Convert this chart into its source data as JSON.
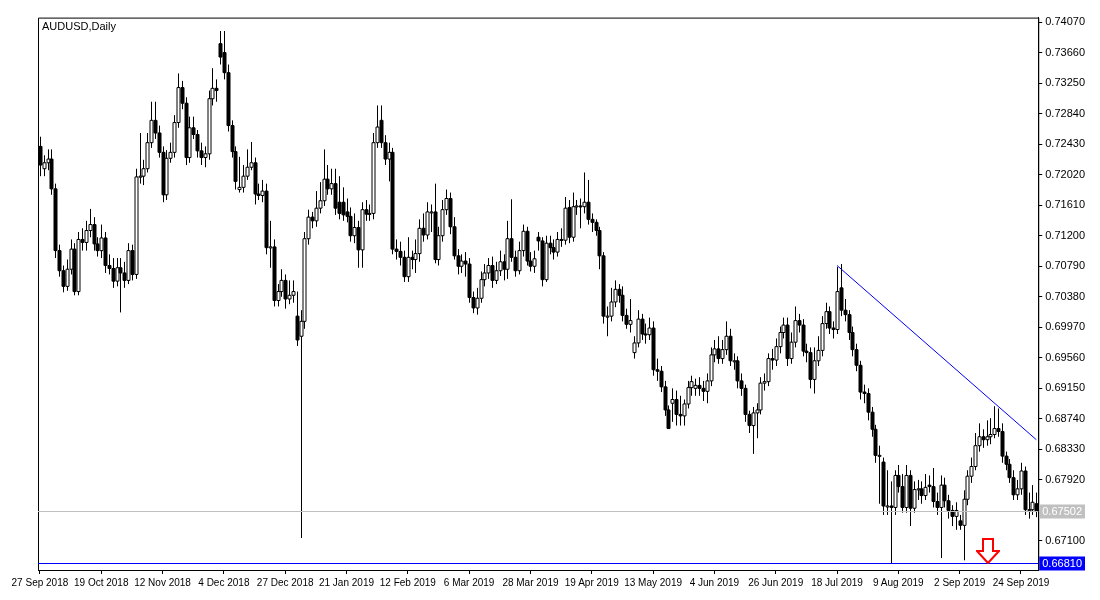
{
  "chart_data": {
    "type": "candlestick",
    "title": "AUDUSD,Daily",
    "categories": [
      "27 Sep 2018",
      null,
      null,
      null,
      null,
      null,
      null,
      null,
      null,
      null,
      null,
      null,
      null,
      null,
      null,
      null,
      "19 Oct 2018",
      null,
      null,
      null,
      null,
      null,
      null,
      null,
      null,
      null,
      null,
      null,
      null,
      null,
      null,
      null,
      "12 Nov 2018",
      null,
      null,
      null,
      null,
      null,
      null,
      null,
      null,
      null,
      null,
      null,
      null,
      null,
      null,
      null,
      "4 Dec 2018",
      null,
      null,
      null,
      null,
      null,
      null,
      null,
      null,
      null,
      null,
      null,
      null,
      null,
      null,
      null,
      "27 Dec 2018",
      null,
      null,
      null,
      null,
      null,
      null,
      null,
      null,
      null,
      null,
      null,
      null,
      null,
      null,
      null,
      "21 Jan 2019",
      null,
      null,
      null,
      null,
      null,
      null,
      null,
      null,
      null,
      null,
      null,
      null,
      null,
      null,
      null,
      "12 Feb 2019",
      null,
      null,
      null,
      null,
      null,
      null,
      null,
      null,
      null,
      null,
      null,
      null,
      null,
      null,
      null,
      "6 Mar 2019",
      null,
      null,
      null,
      null,
      null,
      null,
      null,
      null,
      null,
      null,
      null,
      null,
      null,
      null,
      null,
      "28 Mar 2019",
      null,
      null,
      null,
      null,
      null,
      null,
      null,
      null,
      null,
      null,
      null,
      null,
      null,
      null,
      null,
      "19 Apr 2019",
      null,
      null,
      null,
      null,
      null,
      null,
      null,
      null,
      null,
      null,
      null,
      null,
      null,
      null,
      null,
      "13 May 2019",
      null,
      null,
      null,
      null,
      null,
      null,
      null,
      null,
      null,
      null,
      null,
      null,
      null,
      null,
      null,
      "4 Jun 2019",
      null,
      null,
      null,
      null,
      null,
      null,
      null,
      null,
      null,
      null,
      null,
      null,
      null,
      null,
      null,
      "26 Jun 2019",
      null,
      null,
      null,
      null,
      null,
      null,
      null,
      null,
      null,
      null,
      null,
      null,
      null,
      null,
      null,
      "18 Jul 2019",
      null,
      null,
      null,
      null,
      null,
      null,
      null,
      null,
      null,
      null,
      null,
      null,
      null,
      null,
      null,
      "9 Aug 2019",
      null,
      null,
      null,
      null,
      null,
      null,
      null,
      null,
      null,
      null,
      null,
      null,
      null,
      null,
      null,
      "2 Sep 2019",
      null,
      null,
      null,
      null,
      null,
      null,
      null,
      null,
      null,
      null,
      null,
      null,
      null,
      null,
      null,
      "24 Sep 2019",
      null,
      null,
      null,
      null
    ],
    "ohlc": [
      [
        0.724,
        0.7253,
        0.72,
        0.7215
      ],
      [
        0.721,
        0.7228,
        0.72,
        0.7218
      ],
      [
        0.7218,
        0.7236,
        0.7208,
        0.7223
      ],
      [
        0.7223,
        0.7236,
        0.7175,
        0.7183
      ],
      [
        0.7183,
        0.719,
        0.709,
        0.71
      ],
      [
        0.71,
        0.7108,
        0.7065,
        0.7073
      ],
      [
        0.7073,
        0.708,
        0.7044,
        0.7052
      ],
      [
        0.7052,
        0.7088,
        0.7046,
        0.7075
      ],
      [
        0.7075,
        0.7115,
        0.7068,
        0.7102
      ],
      [
        0.7102,
        0.711,
        0.704,
        0.7045
      ],
      [
        0.7045,
        0.7125,
        0.704,
        0.7115
      ],
      [
        0.7115,
        0.713,
        0.71,
        0.7111
      ],
      [
        0.7111,
        0.714,
        0.71,
        0.7127
      ],
      [
        0.7127,
        0.7156,
        0.7118,
        0.7135
      ],
      [
        0.7135,
        0.7145,
        0.71,
        0.7109
      ],
      [
        0.7109,
        0.7118,
        0.7092,
        0.71
      ],
      [
        0.71,
        0.7135,
        0.709,
        0.7117
      ],
      [
        0.7117,
        0.7125,
        0.707,
        0.708
      ],
      [
        0.708,
        0.7095,
        0.7068,
        0.7076
      ],
      [
        0.7076,
        0.709,
        0.705,
        0.7059
      ],
      [
        0.7059,
        0.709,
        0.7052,
        0.7077
      ],
      [
        0.7077,
        0.709,
        0.7017,
        0.707
      ],
      [
        0.707,
        0.7085,
        0.705,
        0.706
      ],
      [
        0.706,
        0.711,
        0.7055,
        0.71
      ],
      [
        0.71,
        0.7108,
        0.706,
        0.7068
      ],
      [
        0.7068,
        0.721,
        0.7062,
        0.7199
      ],
      [
        0.7199,
        0.7258,
        0.719,
        0.72
      ],
      [
        0.72,
        0.7222,
        0.7188,
        0.721
      ],
      [
        0.721,
        0.7258,
        0.7205,
        0.7245
      ],
      [
        0.7245,
        0.73,
        0.7238,
        0.7275
      ],
      [
        0.7275,
        0.73,
        0.725,
        0.7258
      ],
      [
        0.7258,
        0.7268,
        0.7225,
        0.7232
      ],
      [
        0.7232,
        0.724,
        0.7165,
        0.7175
      ],
      [
        0.7175,
        0.7235,
        0.7168,
        0.7224
      ],
      [
        0.7224,
        0.7245,
        0.7218,
        0.7232
      ],
      [
        0.7232,
        0.7282,
        0.7225,
        0.7272
      ],
      [
        0.7272,
        0.7338,
        0.7265,
        0.7319
      ],
      [
        0.7319,
        0.7328,
        0.729,
        0.7298
      ],
      [
        0.7298,
        0.7306,
        0.7215,
        0.7225
      ],
      [
        0.7225,
        0.728,
        0.7218,
        0.7265
      ],
      [
        0.7265,
        0.728,
        0.725,
        0.7256
      ],
      [
        0.7256,
        0.7262,
        0.7225,
        0.7234
      ],
      [
        0.7234,
        0.7245,
        0.7215,
        0.7225
      ],
      [
        0.7225,
        0.724,
        0.7212,
        0.723
      ],
      [
        0.723,
        0.7315,
        0.7222,
        0.7304
      ],
      [
        0.7304,
        0.7345,
        0.7295,
        0.7318
      ],
      [
        0.7318,
        0.733,
        0.73,
        0.7315
      ],
      [
        0.7378,
        0.7395,
        0.735,
        0.736
      ],
      [
        0.7366,
        0.7395,
        0.733,
        0.7339
      ],
      [
        0.7339,
        0.735,
        0.726,
        0.7268
      ],
      [
        0.7268,
        0.7275,
        0.7225,
        0.7233
      ],
      [
        0.7233,
        0.724,
        0.7182,
        0.7193
      ],
      [
        0.7182,
        0.7226,
        0.7178,
        0.7185
      ],
      [
        0.7185,
        0.7215,
        0.7178,
        0.72
      ],
      [
        0.72,
        0.7236,
        0.7195,
        0.7212
      ],
      [
        0.7212,
        0.7246,
        0.7208,
        0.7218
      ],
      [
        0.7218,
        0.7225,
        0.7162,
        0.7176
      ],
      [
        0.7176,
        0.719,
        0.7168,
        0.7174
      ],
      [
        0.7174,
        0.7195,
        0.7165,
        0.718
      ],
      [
        0.718,
        0.719,
        0.7095,
        0.7104
      ],
      [
        0.7104,
        0.714,
        0.7077,
        0.7105
      ],
      [
        0.7105,
        0.7115,
        0.7025,
        0.7033
      ],
      [
        0.7033,
        0.7055,
        0.7025,
        0.7045
      ],
      [
        0.7045,
        0.7075,
        0.7038,
        0.706
      ],
      [
        0.706,
        0.7068,
        0.7022,
        0.7035
      ],
      [
        0.7035,
        0.706,
        0.7028,
        0.704
      ],
      [
        0.704,
        0.706,
        0.703,
        0.7045
      ],
      [
        0.7012,
        0.7045,
        0.6972,
        0.698
      ],
      [
        0.6985,
        0.702,
        0.6714,
        0.7005
      ],
      [
        0.7005,
        0.7125,
        0.6995,
        0.7116
      ],
      [
        0.7116,
        0.7155,
        0.7108,
        0.7145
      ],
      [
        0.7145,
        0.7152,
        0.713,
        0.714
      ],
      [
        0.714,
        0.718,
        0.7132,
        0.7157
      ],
      [
        0.7157,
        0.7192,
        0.715,
        0.7167
      ],
      [
        0.7167,
        0.7236,
        0.716,
        0.7196
      ],
      [
        0.7196,
        0.7215,
        0.7175,
        0.7183
      ],
      [
        0.7183,
        0.721,
        0.7175,
        0.719
      ],
      [
        0.719,
        0.721,
        0.7148,
        0.7157
      ],
      [
        0.7165,
        0.72,
        0.7142,
        0.715
      ],
      [
        0.7165,
        0.7185,
        0.714,
        0.7148
      ],
      [
        0.7152,
        0.717,
        0.7138,
        0.7146
      ],
      [
        0.7146,
        0.7158,
        0.7112,
        0.712
      ],
      [
        0.712,
        0.715,
        0.711,
        0.7131
      ],
      [
        0.7131,
        0.714,
        0.7077,
        0.7101
      ],
      [
        0.7101,
        0.7165,
        0.7077,
        0.7155
      ],
      [
        0.7155,
        0.7168,
        0.714,
        0.7149
      ],
      [
        0.7149,
        0.7162,
        0.714,
        0.715
      ],
      [
        0.715,
        0.7258,
        0.7142,
        0.7245
      ],
      [
        0.7245,
        0.7295,
        0.7238,
        0.7266
      ],
      [
        0.7275,
        0.7295,
        0.7238,
        0.7245
      ],
      [
        0.7245,
        0.7255,
        0.7215,
        0.7223
      ],
      [
        0.7223,
        0.7245,
        0.7193,
        0.7232
      ],
      [
        0.7232,
        0.7238,
        0.7095,
        0.7102
      ],
      [
        0.7102,
        0.7115,
        0.7088,
        0.7099
      ],
      [
        0.7099,
        0.7112,
        0.708,
        0.7091
      ],
      [
        0.7091,
        0.71,
        0.7058,
        0.7065
      ],
      [
        0.7065,
        0.7118,
        0.7058,
        0.7091
      ],
      [
        0.7091,
        0.71,
        0.7075,
        0.7088
      ],
      [
        0.7088,
        0.7115,
        0.707,
        0.7096
      ],
      [
        0.7096,
        0.7142,
        0.7085,
        0.713
      ],
      [
        0.713,
        0.715,
        0.7112,
        0.7121
      ],
      [
        0.7121,
        0.7165,
        0.7115,
        0.7152
      ],
      [
        0.7152,
        0.7162,
        0.7125,
        0.7152
      ],
      [
        0.7152,
        0.719,
        0.7083,
        0.7088
      ],
      [
        0.7088,
        0.7132,
        0.708,
        0.712
      ],
      [
        0.712,
        0.7168,
        0.7112,
        0.7155
      ],
      [
        0.7155,
        0.7182,
        0.7148,
        0.717
      ],
      [
        0.717,
        0.7178,
        0.7122,
        0.7132
      ],
      [
        0.7132,
        0.7145,
        0.7088,
        0.7093
      ],
      [
        0.7093,
        0.7102,
        0.7068,
        0.7079
      ],
      [
        0.7079,
        0.7095,
        0.707,
        0.7086
      ],
      [
        0.7086,
        0.7098,
        0.7065,
        0.7082
      ],
      [
        0.7082,
        0.709,
        0.703,
        0.7037
      ],
      [
        0.7037,
        0.7045,
        0.7016,
        0.7023
      ],
      [
        0.7023,
        0.705,
        0.7014,
        0.7036
      ],
      [
        0.7036,
        0.7072,
        0.703,
        0.7061
      ],
      [
        0.7061,
        0.7082,
        0.7052,
        0.707
      ],
      [
        0.707,
        0.709,
        0.7062,
        0.708
      ],
      [
        0.708,
        0.7092,
        0.705,
        0.706
      ],
      [
        0.706,
        0.7085,
        0.7055,
        0.7073
      ],
      [
        0.7073,
        0.71,
        0.7066,
        0.7085
      ],
      [
        0.7085,
        0.7095,
        0.706,
        0.7075
      ],
      [
        0.7075,
        0.714,
        0.7062,
        0.7116
      ],
      [
        0.7116,
        0.7169,
        0.7085,
        0.7091
      ],
      [
        0.7091,
        0.71,
        0.7065,
        0.7073
      ],
      [
        0.7073,
        0.7112,
        0.7068,
        0.71
      ],
      [
        0.71,
        0.7135,
        0.7092,
        0.7126
      ],
      [
        0.7126,
        0.7132,
        0.708,
        0.7086
      ],
      [
        0.7086,
        0.7098,
        0.7072,
        0.7079
      ],
      [
        0.7079,
        0.71,
        0.707,
        0.7089
      ],
      [
        0.7118,
        0.7125,
        0.71,
        0.7113
      ],
      [
        0.7113,
        0.7118,
        0.7052,
        0.7061
      ],
      [
        0.7061,
        0.712,
        0.7058,
        0.711
      ],
      [
        0.711,
        0.712,
        0.7095,
        0.7104
      ],
      [
        0.7104,
        0.7115,
        0.7088,
        0.7098
      ],
      [
        0.7098,
        0.7125,
        0.7092,
        0.7115
      ],
      [
        0.7115,
        0.713,
        0.7105,
        0.7114
      ],
      [
        0.7114,
        0.7172,
        0.7108,
        0.7157
      ],
      [
        0.7158,
        0.7168,
        0.711,
        0.7118
      ],
      [
        0.7118,
        0.7178,
        0.7112,
        0.7159
      ],
      [
        0.7159,
        0.7168,
        0.7148,
        0.716
      ],
      [
        0.716,
        0.717,
        0.713,
        0.7159
      ],
      [
        0.7159,
        0.7205,
        0.715,
        0.7165
      ],
      [
        0.7165,
        0.7195,
        0.7135,
        0.7142
      ],
      [
        0.7142,
        0.715,
        0.7125,
        0.7138
      ],
      [
        0.7138,
        0.7142,
        0.712,
        0.7127
      ],
      [
        0.7127,
        0.7132,
        0.7075,
        0.7093
      ],
      [
        0.7093,
        0.7098,
        0.7002,
        0.7012
      ],
      [
        0.7012,
        0.7025,
        0.6985,
        0.7012
      ],
      [
        0.7012,
        0.705,
        0.7005,
        0.7031
      ],
      [
        0.7031,
        0.706,
        0.7024,
        0.7048
      ],
      [
        0.7048,
        0.7055,
        0.703,
        0.704
      ],
      [
        0.704,
        0.7052,
        0.7005,
        0.7013
      ],
      [
        0.7013,
        0.7022,
        0.6995,
        0.7001
      ],
      [
        0.7001,
        0.7035,
        0.699,
        0.7006
      ],
      [
        0.6963,
        0.6985,
        0.6955,
        0.6976
      ],
      [
        0.6976,
        0.702,
        0.697,
        0.7008
      ],
      [
        0.7008,
        0.7015,
        0.698,
        0.6988
      ],
      [
        0.6988,
        0.7002,
        0.6975,
        0.6987
      ],
      [
        0.6987,
        0.701,
        0.698,
        0.6996
      ],
      [
        0.6996,
        0.7005,
        0.6932,
        0.694
      ],
      [
        0.694,
        0.6955,
        0.6925,
        0.6938
      ],
      [
        0.6938,
        0.6945,
        0.691,
        0.6917
      ],
      [
        0.6917,
        0.6925,
        0.6878,
        0.6886
      ],
      [
        0.6886,
        0.6892,
        0.6861,
        0.6861
      ],
      [
        0.6895,
        0.6915,
        0.687,
        0.69
      ],
      [
        0.69,
        0.6912,
        0.6865,
        0.688
      ],
      [
        0.688,
        0.6905,
        0.6865,
        0.6878
      ],
      [
        0.6878,
        0.69,
        0.6865,
        0.6894
      ],
      [
        0.6894,
        0.6925,
        0.6888,
        0.6916
      ],
      [
        0.6916,
        0.6932,
        0.6905,
        0.6924
      ],
      [
        0.6915,
        0.6928,
        0.6905,
        0.6919
      ],
      [
        0.6919,
        0.693,
        0.6905,
        0.6915
      ],
      [
        0.6915,
        0.6925,
        0.6898,
        0.6911
      ],
      [
        0.6911,
        0.6935,
        0.6895,
        0.6925
      ],
      [
        0.6925,
        0.697,
        0.6918,
        0.696
      ],
      [
        0.696,
        0.698,
        0.695,
        0.6968
      ],
      [
        0.6968,
        0.6985,
        0.6948,
        0.6955
      ],
      [
        0.6955,
        0.698,
        0.6948,
        0.6967
      ],
      [
        0.6967,
        0.7005,
        0.696,
        0.6985
      ],
      [
        0.6985,
        0.6995,
        0.6945,
        0.6952
      ],
      [
        0.6952,
        0.6962,
        0.694,
        0.6952
      ],
      [
        0.6952,
        0.6958,
        0.6915,
        0.6925
      ],
      [
        0.6925,
        0.6935,
        0.6905,
        0.6915
      ],
      [
        0.6915,
        0.692,
        0.687,
        0.688
      ],
      [
        0.688,
        0.6885,
        0.6855,
        0.6865
      ],
      [
        0.6865,
        0.689,
        0.6827,
        0.6882
      ],
      [
        0.6882,
        0.6895,
        0.6848,
        0.6886
      ],
      [
        0.6886,
        0.693,
        0.688,
        0.6922
      ],
      [
        0.6922,
        0.6935,
        0.6912,
        0.6924
      ],
      [
        0.6924,
        0.6962,
        0.6918,
        0.6955
      ],
      [
        0.6955,
        0.6968,
        0.694,
        0.6953
      ],
      [
        0.6953,
        0.6982,
        0.6945,
        0.6971
      ],
      [
        0.6971,
        0.6998,
        0.6962,
        0.699
      ],
      [
        0.699,
        0.701,
        0.6982,
        0.7
      ],
      [
        0.7,
        0.701,
        0.6945,
        0.6955
      ],
      [
        0.6955,
        0.699,
        0.6948,
        0.6977
      ],
      [
        0.6977,
        0.7025,
        0.697,
        0.7006
      ],
      [
        0.7006,
        0.7015,
        0.699,
        0.7
      ],
      [
        0.7,
        0.7008,
        0.6958,
        0.6965
      ],
      [
        0.6965,
        0.6975,
        0.695,
        0.6963
      ],
      [
        0.6963,
        0.697,
        0.6915,
        0.6927
      ],
      [
        0.6927,
        0.697,
        0.6908,
        0.6952
      ],
      [
        0.6952,
        0.6985,
        0.6945,
        0.6966
      ],
      [
        0.6966,
        0.7012,
        0.6958,
        0.7002
      ],
      [
        0.7002,
        0.703,
        0.6995,
        0.7018
      ],
      [
        0.7018,
        0.7025,
        0.6988,
        0.6996
      ],
      [
        0.6996,
        0.7005,
        0.6982,
        0.6994
      ],
      [
        0.6994,
        0.7078,
        0.6988,
        0.7045
      ],
      [
        0.705,
        0.7082,
        0.7012,
        0.702
      ],
      [
        0.702,
        0.7035,
        0.7005,
        0.7014
      ],
      [
        0.7014,
        0.702,
        0.698,
        0.699
      ],
      [
        0.699,
        0.6998,
        0.6958,
        0.6967
      ],
      [
        0.6967,
        0.6975,
        0.6938,
        0.6946
      ],
      [
        0.6946,
        0.6952,
        0.69,
        0.691
      ],
      [
        0.691,
        0.692,
        0.6895,
        0.6908
      ],
      [
        0.6908,
        0.6915,
        0.6872,
        0.6883
      ],
      [
        0.6883,
        0.689,
        0.685,
        0.686
      ],
      [
        0.686,
        0.6866,
        0.6815,
        0.6825
      ],
      [
        0.6825,
        0.6838,
        0.676,
        0.6825
      ],
      [
        0.6816,
        0.6822,
        0.6745,
        0.6757
      ],
      [
        0.6757,
        0.6805,
        0.6745,
        0.6757
      ],
      [
        0.6757,
        0.679,
        0.6679,
        0.6755
      ],
      [
        0.6755,
        0.6805,
        0.6745,
        0.6798
      ],
      [
        0.6798,
        0.6812,
        0.6775,
        0.6783
      ],
      [
        0.6783,
        0.68,
        0.6748,
        0.6755
      ],
      [
        0.6755,
        0.6812,
        0.6748,
        0.6798
      ],
      [
        0.6798,
        0.6805,
        0.673,
        0.6754
      ],
      [
        0.6754,
        0.679,
        0.6748,
        0.6779
      ],
      [
        0.6779,
        0.6792,
        0.6765,
        0.678
      ],
      [
        0.678,
        0.679,
        0.676,
        0.6771
      ],
      [
        0.6771,
        0.68,
        0.6765,
        0.6782
      ],
      [
        0.6785,
        0.6798,
        0.6775,
        0.6783
      ],
      [
        0.6783,
        0.6808,
        0.6755,
        0.6763
      ],
      [
        0.6763,
        0.6775,
        0.6745,
        0.6755
      ],
      [
        0.6755,
        0.6798,
        0.6687,
        0.6785
      ],
      [
        0.6785,
        0.6795,
        0.6755,
        0.6764
      ],
      [
        0.6764,
        0.6772,
        0.674,
        0.6751
      ],
      [
        0.6751,
        0.6758,
        0.673,
        0.6743
      ],
      [
        0.6743,
        0.6762,
        0.6725,
        0.6751
      ],
      [
        0.6737,
        0.6745,
        0.6725,
        0.6731
      ],
      [
        0.6731,
        0.6778,
        0.6684,
        0.6766
      ],
      [
        0.6766,
        0.6805,
        0.6758,
        0.6797
      ],
      [
        0.6797,
        0.6822,
        0.6788,
        0.681
      ],
      [
        0.681,
        0.6855,
        0.6805,
        0.6838
      ],
      [
        0.6838,
        0.6868,
        0.683,
        0.685
      ],
      [
        0.685,
        0.686,
        0.6835,
        0.6846
      ],
      [
        0.6846,
        0.6872,
        0.6838,
        0.685
      ],
      [
        0.685,
        0.6875,
        0.684,
        0.6853
      ],
      [
        0.6853,
        0.6891,
        0.6848,
        0.6861
      ],
      [
        0.6861,
        0.6888,
        0.685,
        0.6857
      ],
      [
        0.6857,
        0.6868,
        0.6815,
        0.6824
      ],
      [
        0.6824,
        0.683,
        0.6805,
        0.6813
      ],
      [
        0.6813,
        0.682,
        0.6788,
        0.6795
      ],
      [
        0.6795,
        0.6805,
        0.6765,
        0.6772
      ],
      [
        0.6772,
        0.6792,
        0.6765,
        0.678
      ],
      [
        0.678,
        0.6815,
        0.6772,
        0.6804
      ],
      [
        0.6804,
        0.681,
        0.6745,
        0.6752
      ],
      [
        0.6752,
        0.6775,
        0.674,
        0.6752
      ],
      [
        0.6752,
        0.6785,
        0.6745,
        0.6762
      ],
      [
        0.676,
        0.6775,
        0.6742,
        0.675
      ]
    ],
    "series": [
      {
        "type": "line",
        "values": [
          null,
          null,
          null,
          null,
          null,
          null,
          null,
          null,
          null,
          null,
          null,
          null,
          null,
          null,
          null,
          null,
          null,
          null,
          null,
          null,
          null,
          null,
          null,
          null,
          null,
          null,
          null,
          null,
          null,
          null,
          null,
          null,
          null,
          null,
          null,
          null,
          null,
          null,
          null,
          null,
          null,
          null,
          null,
          null,
          null,
          null,
          null,
          null,
          null,
          null,
          null,
          null,
          null,
          null,
          null,
          null,
          null,
          null,
          null,
          null,
          null,
          null,
          null,
          null,
          null,
          null,
          null,
          null,
          null,
          null,
          null,
          null,
          null,
          null,
          null,
          null,
          null,
          null,
          null,
          null,
          null,
          null,
          null,
          null,
          null,
          null,
          null,
          null,
          null,
          null,
          null,
          null,
          null,
          null,
          null,
          null,
          null,
          null,
          null,
          null,
          null,
          null,
          null,
          null,
          null,
          null,
          null,
          null,
          null,
          null,
          null,
          null,
          null,
          null,
          null,
          null,
          null,
          null,
          null,
          null,
          null,
          null,
          null,
          null,
          null,
          null,
          null,
          null,
          null,
          null,
          null,
          null,
          null,
          null,
          null,
          null,
          null,
          null,
          null,
          null,
          null,
          null,
          null,
          null,
          null,
          null,
          null,
          null,
          null,
          null,
          null,
          null,
          null,
          null,
          null,
          null,
          null,
          null,
          null,
          null,
          null,
          null,
          null,
          null,
          null,
          null,
          null,
          null,
          null,
          null,
          null,
          null,
          null,
          null,
          null,
          null,
          null,
          null,
          null,
          null,
          null,
          null,
          null,
          null,
          null,
          null,
          null,
          null,
          null,
          null,
          null,
          null,
          null,
          null,
          null,
          null,
          null,
          null,
          null,
          null,
          null,
          null,
          null,
          null,
          null,
          null,
          null,
          null,
          0.708,
          null,
          null,
          null,
          null,
          null,
          null,
          null,
          null,
          null,
          null,
          null,
          null,
          null,
          null,
          null,
          null,
          null,
          null,
          null,
          null,
          null,
          null,
          null,
          null,
          null,
          null,
          null,
          null,
          null,
          null,
          null,
          null,
          null,
          null,
          null,
          null,
          null,
          null,
          null,
          null,
          null,
          null,
          null,
          null,
          null,
          null,
          null,
          null,
          null,
          null,
          null,
          0.6846
        ],
        "color": "#0000ff"
      }
    ],
    "ylim": [
      0.6671,
      0.7413
    ],
    "yticks": [
      {
        "value": 0.7407,
        "label": "0.74070"
      },
      {
        "value": 0.7366,
        "label": "0.73660"
      },
      {
        "value": 0.7325,
        "label": "0.73250"
      },
      {
        "value": 0.7284,
        "label": "0.72840"
      },
      {
        "value": 0.7243,
        "label": "0.72430"
      },
      {
        "value": 0.7202,
        "label": "0.72020"
      },
      {
        "value": 0.7161,
        "label": "0.71610"
      },
      {
        "value": 0.712,
        "label": "0.71200"
      },
      {
        "value": 0.7079,
        "label": "0.70790"
      },
      {
        "value": 0.7038,
        "label": "0.70380"
      },
      {
        "value": 0.6997,
        "label": "0.69970"
      },
      {
        "value": 0.6956,
        "label": "0.69560"
      },
      {
        "value": 0.6915,
        "label": "0.69150"
      },
      {
        "value": 0.6874,
        "label": "0.68740"
      },
      {
        "value": 0.6833,
        "label": "0.68330"
      },
      {
        "value": 0.6792,
        "label": "0.67920"
      },
      {
        "value": 0.671,
        "label": "0.67100"
      }
    ],
    "ref_lines": [
      {
        "axis": "y",
        "value": 0.67502,
        "label": "0.67502",
        "color": "#c0c0c0"
      },
      {
        "axis": "y",
        "value": 0.6681,
        "label": "0.66810",
        "color": "#0000ff"
      }
    ]
  }
}
